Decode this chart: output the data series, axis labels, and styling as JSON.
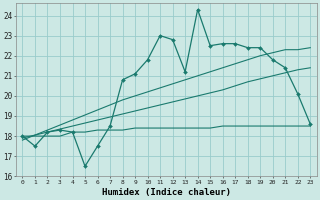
{
  "title": "",
  "xlabel": "Humidex (Indice chaleur)",
  "bg_color": "#cce8e4",
  "grid_color": "#99cccc",
  "line_color": "#1a7a6e",
  "xlim": [
    -0.5,
    23.5
  ],
  "ylim": [
    16,
    24.6
  ],
  "yticks": [
    16,
    17,
    18,
    19,
    20,
    21,
    22,
    23,
    24
  ],
  "xticks": [
    0,
    1,
    2,
    3,
    4,
    5,
    6,
    7,
    8,
    9,
    10,
    11,
    12,
    13,
    14,
    15,
    16,
    17,
    18,
    19,
    20,
    21,
    22,
    23
  ],
  "main_y": [
    18.0,
    17.5,
    18.2,
    18.3,
    18.2,
    16.5,
    17.5,
    18.5,
    20.8,
    21.1,
    21.8,
    23.0,
    22.8,
    21.2,
    24.3,
    22.5,
    22.6,
    22.6,
    22.4,
    22.4,
    21.8,
    21.4,
    20.1,
    18.6
  ],
  "flat_y": [
    18.0,
    18.0,
    18.0,
    18.0,
    18.2,
    18.2,
    18.3,
    18.3,
    18.3,
    18.4,
    18.4,
    18.4,
    18.4,
    18.4,
    18.4,
    18.4,
    18.5,
    18.5,
    18.5,
    18.5,
    18.5,
    18.5,
    18.5,
    18.5
  ],
  "trend_upper_y": [
    17.8,
    18.05,
    18.3,
    18.55,
    18.8,
    19.05,
    19.3,
    19.55,
    19.8,
    20.0,
    20.2,
    20.4,
    20.6,
    20.8,
    21.0,
    21.2,
    21.4,
    21.6,
    21.8,
    22.0,
    22.15,
    22.3,
    22.3,
    22.4
  ],
  "trend_lower_y": [
    17.9,
    18.05,
    18.2,
    18.35,
    18.5,
    18.65,
    18.8,
    18.95,
    19.1,
    19.25,
    19.4,
    19.55,
    19.7,
    19.85,
    20.0,
    20.15,
    20.3,
    20.5,
    20.7,
    20.85,
    21.0,
    21.15,
    21.3,
    21.4
  ]
}
